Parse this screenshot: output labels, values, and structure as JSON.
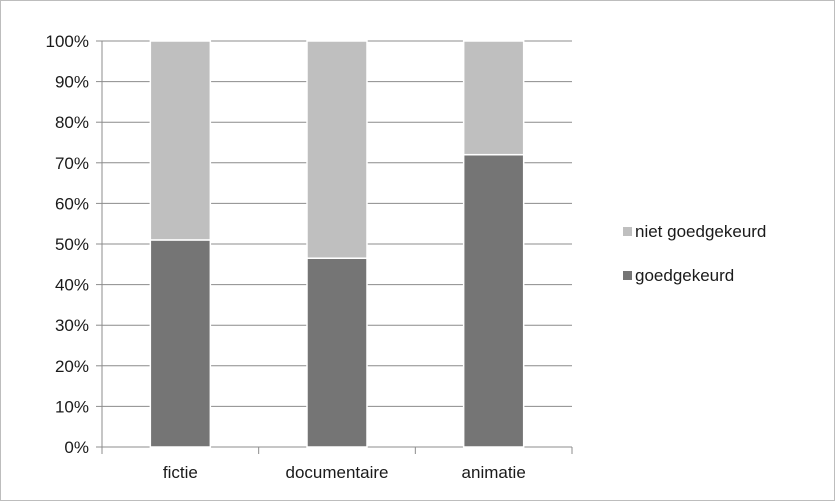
{
  "chart_data": {
    "type": "bar",
    "stacked": true,
    "categories": [
      "fictie",
      "documentaire",
      "animatie"
    ],
    "series": [
      {
        "name": "goedgekeurd",
        "values": [
          51,
          46.5,
          72
        ],
        "color": "#757575"
      },
      {
        "name": "niet goedgekeurd",
        "values": [
          49,
          53.5,
          28
        ],
        "color": "#bfbfbf"
      }
    ],
    "ylim": [
      0,
      100
    ],
    "yticks": [
      "0%",
      "10%",
      "20%",
      "30%",
      "40%",
      "50%",
      "60%",
      "70%",
      "80%",
      "90%",
      "100%"
    ],
    "legend_order": [
      "niet goedgekeurd",
      "goedgekeurd"
    ],
    "legend_position": "right",
    "grid": true
  }
}
